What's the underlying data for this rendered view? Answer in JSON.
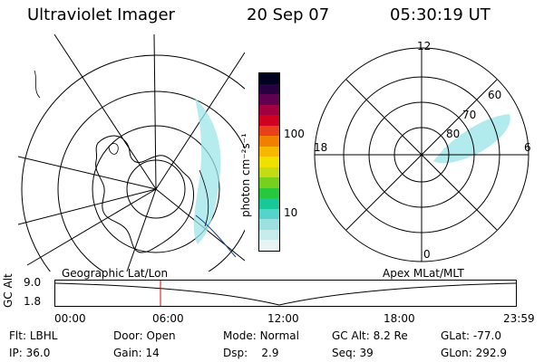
{
  "header": {
    "instrument": "Ultraviolet Imager",
    "date": "20 Sep 07",
    "time": "05:30:19 UT"
  },
  "colorbar": {
    "unit_label": "photon cm⁻²s⁻¹",
    "ticks": [
      "100",
      "10"
    ],
    "colors": [
      "#e8f4f4",
      "#c8ecec",
      "#9ee0e0",
      "#55d4cc",
      "#18c896",
      "#28c83c",
      "#78d01e",
      "#c4dc14",
      "#f0e000",
      "#f8b800",
      "#f08000",
      "#e84018",
      "#d00020",
      "#a00040",
      "#600050",
      "#280040",
      "#000020"
    ]
  },
  "left_map": {
    "label": "Geographic Lat/Lon",
    "aurora_color": "#9fe6ea"
  },
  "right_map": {
    "label": "Apex MLat/MLT",
    "mlt_labels": {
      "top": "12",
      "left": "18",
      "right": "6",
      "bottom": "0"
    },
    "lat_labels": [
      "60",
      "70",
      "80"
    ],
    "aurora_color": "#9fe6ea"
  },
  "timeline": {
    "ylabel": "GC Alt",
    "y_ticks": [
      "9.0",
      "1.8"
    ],
    "x_ticks": [
      "00:00",
      "06:00",
      "12:00",
      "18:00",
      "23:59"
    ],
    "marker_color": "#e00000"
  },
  "status": {
    "row1": [
      {
        "key": "Flt:",
        "value": "LBHL"
      },
      {
        "key": "Door:",
        "value": "Open"
      },
      {
        "key": "Mode:",
        "value": "Normal"
      },
      {
        "key": "GC Alt:",
        "value": "8.2 Re"
      },
      {
        "key": "GLat:",
        "value": "-77.0"
      }
    ],
    "row2": [
      {
        "key": "IP:",
        "value": "36.0"
      },
      {
        "key": "Gain:",
        "value": "14"
      },
      {
        "key": "Dsp:",
        "value": "2.9"
      },
      {
        "key": "Seq:",
        "value": "39"
      },
      {
        "key": "GLon:",
        "value": "292.9"
      }
    ]
  }
}
